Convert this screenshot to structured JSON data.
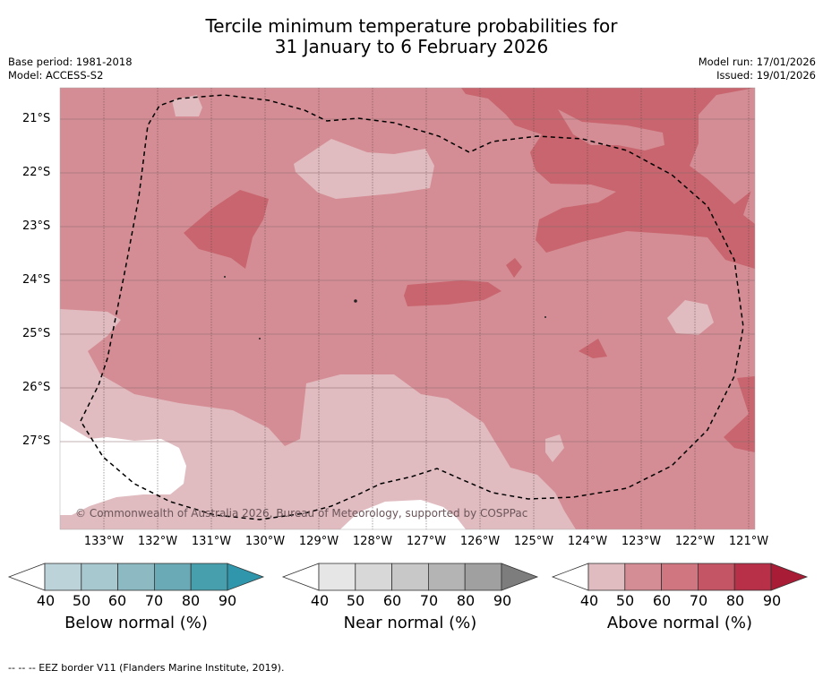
{
  "title": {
    "line1": "Tercile minimum temperature probabilities for",
    "line2": "31 January to 6 February 2026"
  },
  "meta": {
    "base_period": "Base period: 1981-2018",
    "model": "Model: ACCESS-S2",
    "model_run": "Model run: 17/01/2026",
    "issued": "Issued: 19/01/2026"
  },
  "map": {
    "lat_labels": [
      "21°S",
      "22°S",
      "23°S",
      "24°S",
      "25°S",
      "26°S",
      "27°S"
    ],
    "lon_labels": [
      "133°W",
      "132°W",
      "131°W",
      "130°W",
      "129°W",
      "128°W",
      "127°W",
      "126°W",
      "125°W",
      "124°W",
      "123°W",
      "122°W",
      "121°W"
    ],
    "copyright": "© Commonwealth of Australia 2026, Bureau of Meteorology, supported by COSPPac",
    "category_colors": {
      "above_40": "#e0bcc0",
      "above_50": "#d48d94",
      "above_60": "#c8656e",
      "no_data": "#ffffff"
    }
  },
  "colorbars": {
    "ticks": [
      "40",
      "50",
      "60",
      "70",
      "80",
      "90"
    ],
    "below": {
      "title": "Below normal (%)",
      "colors": [
        "#ffffff",
        "#bcd3d9",
        "#a6c8ce",
        "#8cb9c2",
        "#6aaab6",
        "#479fae",
        "#2f96ab"
      ]
    },
    "near": {
      "title": "Near normal (%)",
      "colors": [
        "#ffffff",
        "#e6e6e6",
        "#d8d8d8",
        "#c8c8c8",
        "#b4b4b4",
        "#a0a0a0",
        "#7d7d7d"
      ]
    },
    "above": {
      "title": "Above normal (%)",
      "colors": [
        "#ffffff",
        "#e0bcc0",
        "#d48d94",
        "#cf7680",
        "#c45565",
        "#b83048",
        "#a81c35"
      ]
    }
  },
  "footnote": "--  --  -- EEZ border V11 (Flanders Marine Institute, 2019)."
}
